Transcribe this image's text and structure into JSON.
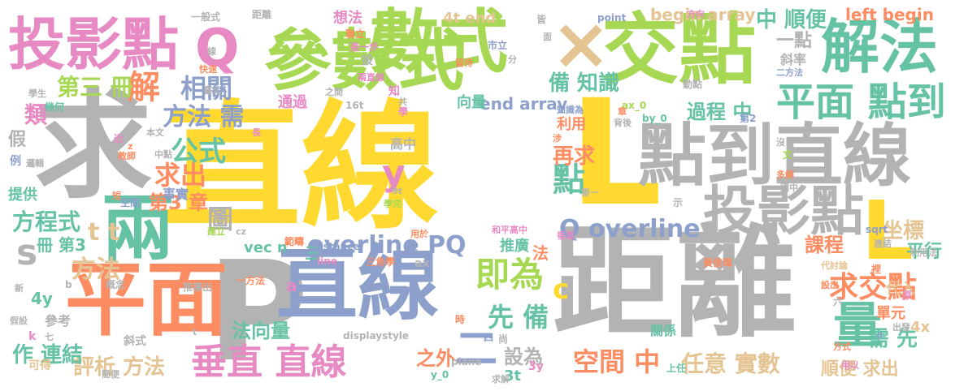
{
  "palette": {
    "yellow": "#ffd92f",
    "gray": "#b3b3b3",
    "green": "#a6d854",
    "teal": "#66c2a5",
    "orange": "#fc8d62",
    "blue": "#8da0cb",
    "pink": "#e78ac3",
    "tan": "#e5c494"
  },
  "words": [
    {
      "text": "直線",
      "color": "yellow"
    },
    {
      "text": "距離",
      "color": "gray"
    },
    {
      "text": "求",
      "color": "gray"
    },
    {
      "text": "P",
      "color": "gray"
    },
    {
      "text": "L",
      "color": "yellow"
    },
    {
      "text": "參數式",
      "color": "green"
    },
    {
      "text": "數式",
      "color": "green"
    },
    {
      "text": "交點",
      "color": "green"
    },
    {
      "text": "投影點",
      "color": "pink"
    },
    {
      "text": "兩",
      "color": "teal"
    },
    {
      "text": "平面",
      "color": "orange"
    },
    {
      "text": "直線",
      "color": "blue"
    },
    {
      "text": "點到直線",
      "color": "gray"
    },
    {
      "text": "投影點",
      "color": "gray"
    },
    {
      "text": "解法",
      "color": "teal"
    },
    {
      "text": "Q",
      "color": "pink"
    },
    {
      "text": "×",
      "color": "tan"
    },
    {
      "text": "L",
      "color": "yellow"
    },
    {
      "text": "量",
      "color": "teal"
    },
    {
      "text": "平面 點到",
      "color": "teal"
    },
    {
      "text": "垂直 直線",
      "color": "pink"
    },
    {
      "text": "overline PQ",
      "color": "blue"
    },
    {
      "text": "Q overline",
      "color": "blue"
    },
    {
      "text": "求交點",
      "color": "orange"
    },
    {
      "text": "即為",
      "color": "green"
    },
    {
      "text": "空間 中",
      "color": "orange"
    },
    {
      "text": "任意 實數",
      "color": "tan"
    },
    {
      "text": "求出",
      "color": "orange"
    },
    {
      "text": "公式",
      "color": "teal"
    },
    {
      "text": "相關",
      "color": "blue"
    },
    {
      "text": "解",
      "color": "orange"
    },
    {
      "text": "第三 冊",
      "color": "green"
    },
    {
      "text": "方法 需",
      "color": "blue"
    },
    {
      "text": "方程式",
      "color": "teal"
    },
    {
      "text": "方法",
      "color": "tan"
    },
    {
      "text": "點",
      "color": "teal"
    },
    {
      "text": "圖",
      "color": "gray"
    },
    {
      "text": "y",
      "color": "pink"
    },
    {
      "text": "t t",
      "color": "tan"
    },
    {
      "text": "s",
      "color": "gray"
    },
    {
      "text": "c",
      "color": "yellow"
    },
    {
      "text": "先 備",
      "color": "teal"
    },
    {
      "text": "二",
      "color": "blue"
    },
    {
      "text": "評析 方法",
      "color": "tan"
    },
    {
      "text": "作 連結",
      "color": "teal"
    },
    {
      "text": "設為",
      "color": "gray"
    },
    {
      "text": "中 順便",
      "color": "teal"
    },
    {
      "text": "過程 中",
      "color": "teal"
    },
    {
      "text": "備 知識",
      "color": "teal"
    },
    {
      "text": "再求",
      "color": "orange"
    },
    {
      "text": "坐標",
      "color": "tan"
    },
    {
      "text": "需 先",
      "color": "teal"
    },
    {
      "text": "課程",
      "color": "orange"
    },
    {
      "text": "平行",
      "color": "teal"
    },
    {
      "text": "left begin",
      "color": "orange"
    },
    {
      "text": "begin array",
      "color": "tan"
    },
    {
      "text": "end array",
      "color": "blue"
    },
    {
      "text": "4t end",
      "color": "tan"
    },
    {
      "text": "類",
      "color": "pink"
    },
    {
      "text": "第3 章",
      "color": "orange"
    },
    {
      "text": "冊 第3",
      "color": "teal"
    },
    {
      "text": "法向量",
      "color": "teal"
    },
    {
      "text": "4y",
      "color": "teal"
    },
    {
      "text": "a",
      "color": "pink"
    },
    {
      "text": "之外",
      "color": "orange"
    },
    {
      "text": "3t",
      "color": "teal"
    },
    {
      "text": "利用",
      "color": "orange"
    },
    {
      "text": "推廣",
      "color": "teal"
    },
    {
      "text": "法",
      "color": "orange"
    },
    {
      "text": "單元",
      "color": "orange"
    },
    {
      "text": "4x",
      "color": "tan"
    },
    {
      "text": "代入",
      "color": "tan"
    },
    {
      "text": "順便 求出",
      "color": "tan"
    },
    {
      "text": "關係",
      "color": "teal"
    },
    {
      "text": "斜率",
      "color": "gray"
    },
    {
      "text": "一點",
      "color": "gray"
    },
    {
      "text": "向量",
      "color": "teal"
    },
    {
      "text": "通過",
      "color": "pink"
    },
    {
      "text": "高中",
      "color": "gray"
    },
    {
      "text": "事實",
      "color": "blue"
    },
    {
      "text": "提供",
      "color": "teal"
    },
    {
      "text": "vec n",
      "color": "teal"
    },
    {
      "text": "三",
      "color": "teal"
    },
    {
      "text": "參考",
      "color": "gray"
    },
    {
      "text": "斜式",
      "color": "gray"
    },
    {
      "text": "可得",
      "color": "tan"
    },
    {
      "text": "假",
      "color": "gray"
    },
    {
      "text": "例",
      "color": "blue"
    },
    {
      "text": "想法",
      "color": "pink"
    },
    {
      "text": "一般式",
      "color": "gray"
    },
    {
      "text": "距離",
      "color": "gray"
    },
    {
      "text": "point",
      "color": "blue"
    },
    {
      "text": "方向",
      "color": "pink"
    },
    {
      "text": "皆",
      "color": "gray"
    },
    {
      "text": "聯立",
      "color": "orange"
    },
    {
      "text": "進一步",
      "color": "pink"
    },
    {
      "text": "市立",
      "color": "blue"
    },
    {
      "text": "二方法",
      "color": "blue"
    },
    {
      "text": "動點",
      "color": "gray"
    },
    {
      "text": "設",
      "color": "gray"
    },
    {
      "text": "知",
      "color": "pink"
    },
    {
      "text": "學",
      "color": "pink"
    },
    {
      "text": "16t",
      "color": "gray"
    },
    {
      "text": "ax_0",
      "color": "green"
    },
    {
      "text": "by_0",
      "color": "teal"
    },
    {
      "text": "第2",
      "color": "blue"
    },
    {
      "text": "文",
      "color": "green"
    },
    {
      "text": "多解",
      "color": "orange"
    },
    {
      "text": "國中",
      "color": "gray"
    },
    {
      "text": "sqrt",
      "color": "blue"
    },
    {
      "text": "連結",
      "color": "gray"
    },
    {
      "text": "利用法",
      "color": "gray"
    },
    {
      "text": "代討論",
      "color": "tan"
    },
    {
      "text": "設出",
      "color": "orange"
    },
    {
      "text": "原",
      "color": "pink"
    },
    {
      "text": "出發",
      "color": "gray"
    },
    {
      "text": "方式",
      "color": "orange"
    },
    {
      "text": "用以",
      "color": "pink"
    },
    {
      "text": "上任",
      "color": "teal"
    },
    {
      "text": "黃俊瑋",
      "color": "orange"
    },
    {
      "text": "裡",
      "color": "orange"
    },
    {
      "text": "六",
      "color": "gray"
    },
    {
      "text": "示",
      "color": "gray"
    },
    {
      "text": "和平高中",
      "color": "pink"
    },
    {
      "text": "範疇",
      "color": "orange"
    },
    {
      "text": "distance",
      "color": "blue"
    },
    {
      "text": "line",
      "color": "pink"
    },
    {
      "text": "三角學",
      "color": "orange"
    },
    {
      "text": "ax",
      "color": "gray"
    },
    {
      "text": "四",
      "color": "blue"
    },
    {
      "text": "尚",
      "color": "gray"
    },
    {
      "text": "plane",
      "color": "gray"
    },
    {
      "text": "y_0",
      "color": "teal"
    },
    {
      "text": "求解",
      "color": "gray"
    },
    {
      "text": "3y",
      "color": "pink"
    },
    {
      "text": "時",
      "color": "orange"
    },
    {
      "text": "displaystyle",
      "color": "gray"
    },
    {
      "text": "一方法",
      "color": "orange"
    },
    {
      "text": "推導出",
      "color": "gray"
    },
    {
      "text": "概念",
      "color": "gray"
    },
    {
      "text": "新",
      "color": "gray"
    },
    {
      "text": "b",
      "color": "gray"
    },
    {
      "text": "k",
      "color": "pink"
    },
    {
      "text": "七",
      "color": "gray"
    },
    {
      "text": "簡便",
      "color": "gray"
    },
    {
      "text": "假設",
      "color": "gray"
    },
    {
      "text": "建立",
      "color": "green"
    },
    {
      "text": "空間",
      "color": "blue"
    },
    {
      "text": "x_0",
      "color": "gray"
    },
    {
      "text": "教師",
      "color": "orange"
    },
    {
      "text": "短",
      "color": "orange"
    },
    {
      "text": "中點",
      "color": "gray"
    },
    {
      "text": "本文",
      "color": "gray"
    },
    {
      "text": "近",
      "color": "pink"
    },
    {
      "text": "邏輯",
      "color": "gray"
    },
    {
      "text": "幾何",
      "color": "teal"
    },
    {
      "text": "學生",
      "color": "gray"
    },
    {
      "text": "快速",
      "color": "orange"
    },
    {
      "text": "線",
      "color": "gray"
    },
    {
      "text": "臺北",
      "color": "gray"
    },
    {
      "text": "長",
      "color": "pink"
    },
    {
      "text": "之間",
      "color": "gray"
    },
    {
      "text": "兩直線",
      "color": "pink"
    },
    {
      "text": "共",
      "color": "gray"
    },
    {
      "text": "留待",
      "color": "orange"
    },
    {
      "text": "分",
      "color": "gray"
    },
    {
      "text": "章",
      "color": "orange"
    },
    {
      "text": "背後",
      "color": "gray"
    },
    {
      "text": "知識為",
      "color": "blue"
    },
    {
      "text": "涉",
      "color": "orange"
    },
    {
      "text": "第一",
      "color": "gray"
    },
    {
      "text": "垂直",
      "color": "pink"
    },
    {
      "text": "9t",
      "color": "gray"
    },
    {
      "text": "學完",
      "color": "green"
    },
    {
      "text": "用於",
      "color": "orange"
    },
    {
      "text": "沒",
      "color": "gray"
    },
    {
      "text": "面",
      "color": "gray"
    },
    {
      "text": "z",
      "color": "orange"
    },
    {
      "text": "cz",
      "color": "gray"
    },
    {
      "text": "d",
      "color": "blue"
    },
    {
      "text": "t",
      "color": "gray"
    }
  ]
}
